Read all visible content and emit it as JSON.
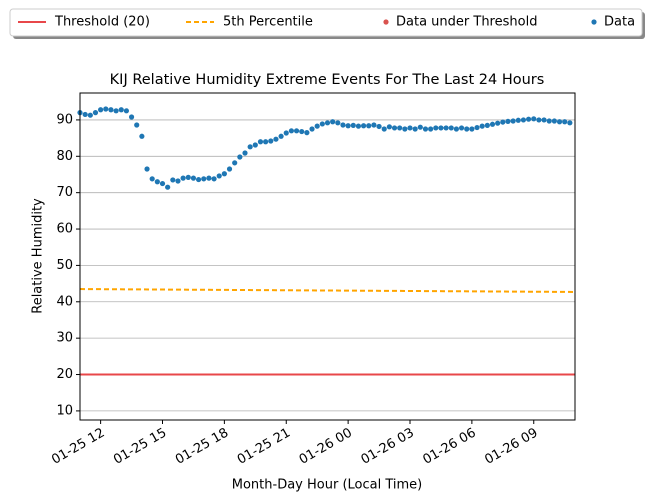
{
  "chart_data": {
    "type": "scatter",
    "title": "KIJ Relative Humidity Extreme Events For The Last 24 Hours",
    "x_label": "Month-Day Hour (Local Time)",
    "y_label": "Relative Humidity",
    "xlim": [
      "01-25 11:00",
      "01-26 11:00"
    ],
    "xticks": [
      {
        "value": "01-25 12:00",
        "label": "01-25 12"
      },
      {
        "value": "01-25 15:00",
        "label": "01-25 15"
      },
      {
        "value": "01-25 18:00",
        "label": "01-25 18"
      },
      {
        "value": "01-25 21:00",
        "label": "01-25 21"
      },
      {
        "value": "01-26 00:00",
        "label": "01-26 00"
      },
      {
        "value": "01-26 03:00",
        "label": "01-26 03"
      },
      {
        "value": "01-26 06:00",
        "label": "01-26 06"
      },
      {
        "value": "01-26 09:00",
        "label": "01-26 09"
      }
    ],
    "ylim": [
      7.5,
      97.4
    ],
    "yticks": [
      10,
      20,
      30,
      40,
      50,
      60,
      70,
      80,
      90
    ],
    "grid": true,
    "legend": "top",
    "series": [
      {
        "name": "Threshold (20)",
        "kind": "line",
        "color": "#e8474a",
        "x": [
          "01-25 11:00",
          "01-26 11:00"
        ],
        "values": [
          20,
          20
        ]
      },
      {
        "name": "5th Percentile",
        "kind": "dashed-line",
        "color": "#ffa500",
        "x": [
          "01-25 11:00",
          "01-26 11:00"
        ],
        "values": [
          43.5,
          42.7
        ]
      },
      {
        "name": "Data under Threshold",
        "kind": "points",
        "color": "#d9534f",
        "x": [],
        "values": []
      },
      {
        "name": "Data",
        "kind": "points",
        "color": "#1f77b4",
        "x": [
          "01-25 11:00",
          "01-25 11:15",
          "01-25 11:30",
          "01-25 11:45",
          "01-25 12:00",
          "01-25 12:15",
          "01-25 12:30",
          "01-25 12:45",
          "01-25 13:00",
          "01-25 13:15",
          "01-25 13:30",
          "01-25 13:45",
          "01-25 14:00",
          "01-25 14:15",
          "01-25 14:30",
          "01-25 14:45",
          "01-25 15:00",
          "01-25 15:15",
          "01-25 15:30",
          "01-25 15:45",
          "01-25 16:00",
          "01-25 16:15",
          "01-25 16:30",
          "01-25 16:45",
          "01-25 17:00",
          "01-25 17:15",
          "01-25 17:30",
          "01-25 17:45",
          "01-25 18:00",
          "01-25 18:15",
          "01-25 18:30",
          "01-25 18:45",
          "01-25 19:00",
          "01-25 19:15",
          "01-25 19:30",
          "01-25 19:45",
          "01-25 20:00",
          "01-25 20:15",
          "01-25 20:30",
          "01-25 20:45",
          "01-25 21:00",
          "01-25 21:15",
          "01-25 21:30",
          "01-25 21:45",
          "01-25 22:00",
          "01-25 22:15",
          "01-25 22:30",
          "01-25 22:45",
          "01-25 23:00",
          "01-25 23:15",
          "01-25 23:30",
          "01-25 23:45",
          "01-26 00:00",
          "01-26 00:15",
          "01-26 00:30",
          "01-26 00:45",
          "01-26 01:00",
          "01-26 01:15",
          "01-26 01:30",
          "01-26 01:45",
          "01-26 02:00",
          "01-26 02:15",
          "01-26 02:30",
          "01-26 02:45",
          "01-26 03:00",
          "01-26 03:15",
          "01-26 03:30",
          "01-26 03:45",
          "01-26 04:00",
          "01-26 04:15",
          "01-26 04:30",
          "01-26 04:45",
          "01-26 05:00",
          "01-26 05:15",
          "01-26 05:30",
          "01-26 05:45",
          "01-26 06:00",
          "01-26 06:15",
          "01-26 06:30",
          "01-26 06:45",
          "01-26 07:00",
          "01-26 07:15",
          "01-26 07:30",
          "01-26 07:45",
          "01-26 08:00",
          "01-26 08:15",
          "01-26 08:30",
          "01-26 08:45",
          "01-26 09:00",
          "01-26 09:15",
          "01-26 09:30",
          "01-26 09:45",
          "01-26 10:00",
          "01-26 10:15",
          "01-26 10:30",
          "01-26 10:45"
        ],
        "values": [
          92.0,
          91.5,
          91.3,
          92.0,
          92.8,
          93.0,
          92.8,
          92.5,
          92.8,
          92.5,
          90.8,
          88.6,
          85.5,
          76.5,
          73.8,
          73.0,
          72.5,
          71.5,
          73.5,
          73.2,
          74.0,
          74.2,
          74.0,
          73.6,
          73.8,
          74.0,
          73.8,
          74.6,
          75.2,
          76.5,
          78.2,
          79.8,
          80.9,
          82.6,
          83.1,
          84.0,
          84.0,
          84.2,
          84.7,
          85.5,
          86.4,
          87.0,
          87.0,
          86.8,
          86.5,
          87.5,
          88.3,
          88.9,
          89.2,
          89.5,
          89.2,
          88.6,
          88.4,
          88.5,
          88.3,
          88.4,
          88.4,
          88.6,
          88.2,
          87.5,
          88.1,
          87.8,
          87.8,
          87.5,
          87.8,
          87.5,
          88.0,
          87.5,
          87.5,
          87.8,
          87.8,
          87.8,
          87.8,
          87.5,
          87.8,
          87.5,
          87.5,
          87.9,
          88.3,
          88.5,
          88.8,
          89.1,
          89.4,
          89.6,
          89.7,
          89.9,
          90.0,
          90.2,
          90.3,
          90.0,
          90.0,
          89.7,
          89.7,
          89.5,
          89.5,
          89.2
        ]
      }
    ]
  }
}
